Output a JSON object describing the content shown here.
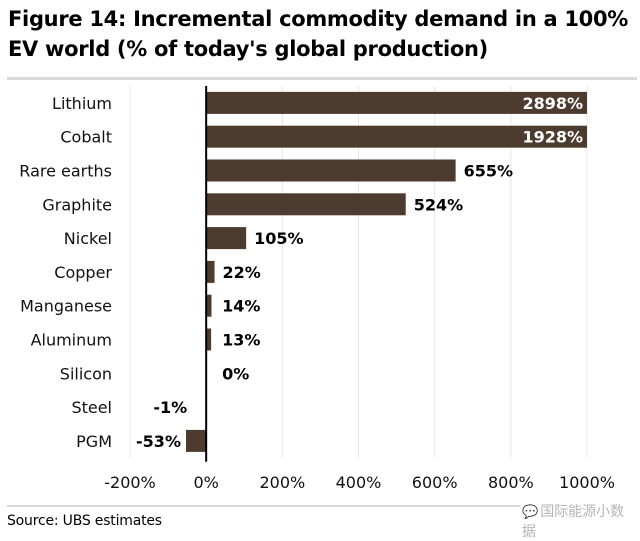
{
  "figure": {
    "title": "Figure 14: Incremental commodity demand in a 100% EV world (% of today's global production)",
    "source": "Source: UBS estimates",
    "watermark": "国际能源小数据",
    "watermark_icon": "wechat-icon"
  },
  "colors": {
    "bar": "#4e3b30",
    "axis": "#000000",
    "grid": "#e6e6e6",
    "rule": "#d9d9d9"
  },
  "chart_data": {
    "type": "bar",
    "orientation": "horizontal",
    "title": "Figure 14: Incremental commodity demand in a 100% EV world (% of today's global production)",
    "xlabel": "",
    "ylabel": "",
    "categories": [
      "Lithium",
      "Cobalt",
      "Rare earths",
      "Graphite",
      "Nickel",
      "Copper",
      "Manganese",
      "Aluminum",
      "Silicon",
      "Steel",
      "PGM"
    ],
    "values": [
      2898,
      1928,
      655,
      524,
      105,
      22,
      14,
      13,
      0,
      -1,
      -53
    ],
    "value_labels": [
      "2898%",
      "1928%",
      "655%",
      "524%",
      "105%",
      "22%",
      "14%",
      "13%",
      "0%",
      "-1%",
      "-53%"
    ],
    "xlim": [
      -200,
      1000
    ],
    "x_ticks": [
      -200,
      0,
      200,
      400,
      600,
      800,
      1000
    ],
    "x_tick_labels": [
      "-200%",
      "0%",
      "200%",
      "400%",
      "600%",
      "800%",
      "1000%"
    ],
    "grid": true,
    "grid_axis": "x",
    "clipped_at_max": [
      "Lithium",
      "Cobalt"
    ],
    "legend": "none",
    "source": "Source: UBS estimates"
  }
}
